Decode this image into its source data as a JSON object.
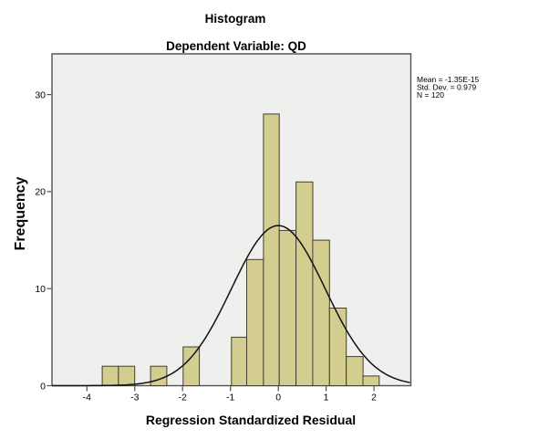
{
  "figure": {
    "title": "Histogram",
    "subtitle": "Dependent Variable: QD"
  },
  "chart_data": {
    "type": "bar",
    "subtype": "histogram-with-normal-curve",
    "title": "Histogram",
    "subtitle": "Dependent Variable: QD",
    "xlabel": "Regression Standardized Residual",
    "ylabel": "Frequency",
    "x_ticks": [
      -4,
      -3,
      -2,
      -1,
      0,
      1,
      2
    ],
    "y_ticks": [
      0,
      10,
      20,
      30
    ],
    "xlim": [
      -4.73,
      2.77
    ],
    "ylim": [
      0,
      34.2
    ],
    "grid": false,
    "legend": false,
    "bins": [
      {
        "x_left": -3.68,
        "x_right": -3.34,
        "count": 2
      },
      {
        "x_left": -3.34,
        "x_right": -3.0,
        "count": 2
      },
      {
        "x_left": -2.67,
        "x_right": -2.33,
        "count": 2
      },
      {
        "x_left": -1.99,
        "x_right": -1.65,
        "count": 4
      },
      {
        "x_left": -0.98,
        "x_right": -0.66,
        "count": 5
      },
      {
        "x_left": -0.66,
        "x_right": -0.31,
        "count": 13
      },
      {
        "x_left": -0.31,
        "x_right": 0.02,
        "count": 28
      },
      {
        "x_left": 0.02,
        "x_right": 0.37,
        "count": 16
      },
      {
        "x_left": 0.37,
        "x_right": 0.72,
        "count": 21
      },
      {
        "x_left": 0.72,
        "x_right": 1.07,
        "count": 15
      },
      {
        "x_left": 1.07,
        "x_right": 1.42,
        "count": 8
      },
      {
        "x_left": 1.42,
        "x_right": 1.77,
        "count": 3
      },
      {
        "x_left": 1.77,
        "x_right": 2.11,
        "count": 1
      }
    ],
    "normal_curve": {
      "mean": 0,
      "sd": 0.979,
      "peak_height": 16.5
    },
    "annotation": {
      "lines": [
        "Mean = -1.35E-15",
        "Std. Dev. = 0.979",
        "N = 120"
      ]
    },
    "colors": {
      "bar_fill": "#d4cd90",
      "bar_stroke": "#403f30",
      "plot_bg": "#efefed",
      "plot_border": "#515151",
      "curve": "#111111",
      "text": "#000000"
    }
  }
}
